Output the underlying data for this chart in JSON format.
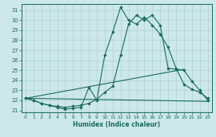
{
  "xlabel": "Humidex (Indice chaleur)",
  "bg_color": "#cce8e8",
  "line_color": "#1a6b5a",
  "grid_color": "#aacccc",
  "xlim": [
    -0.5,
    23.5
  ],
  "ylim": [
    20.8,
    31.6
  ],
  "yticks": [
    21,
    22,
    23,
    24,
    25,
    26,
    27,
    28,
    29,
    30,
    31
  ],
  "xticks": [
    0,
    1,
    2,
    3,
    4,
    5,
    6,
    7,
    8,
    9,
    10,
    11,
    12,
    13,
    14,
    15,
    16,
    17,
    18,
    19,
    20,
    21,
    22,
    23
  ],
  "line1_x": [
    0,
    1,
    2,
    3,
    4,
    5,
    6,
    7,
    8,
    9,
    10,
    11,
    12,
    13,
    14,
    15,
    16,
    17,
    18,
    19,
    20,
    21,
    22,
    23
  ],
  "line1_y": [
    22.2,
    22.0,
    21.7,
    21.5,
    21.3,
    21.1,
    21.2,
    21.3,
    23.3,
    22.0,
    26.5,
    28.8,
    31.3,
    30.0,
    29.6,
    30.3,
    29.5,
    28.6,
    27.3,
    25.2,
    23.6,
    23.1,
    22.8,
    22.2
  ],
  "line2_x": [
    0,
    1,
    2,
    3,
    4,
    5,
    6,
    7,
    8,
    9,
    10,
    11,
    12,
    13,
    14,
    15,
    16,
    17,
    18,
    19,
    20,
    21,
    22,
    23
  ],
  "line2_y": [
    22.2,
    22.0,
    21.7,
    21.5,
    21.4,
    21.3,
    21.4,
    21.5,
    21.7,
    22.1,
    22.8,
    23.4,
    26.5,
    29.6,
    30.5,
    30.0,
    30.5,
    29.5,
    25.2,
    25.1,
    25.0,
    23.9,
    23.0,
    22.0
  ],
  "line3_x": [
    0,
    23
  ],
  "line3_y": [
    22.2,
    21.9
  ],
  "line4_x": [
    0,
    20
  ],
  "line4_y": [
    22.2,
    25.1
  ]
}
